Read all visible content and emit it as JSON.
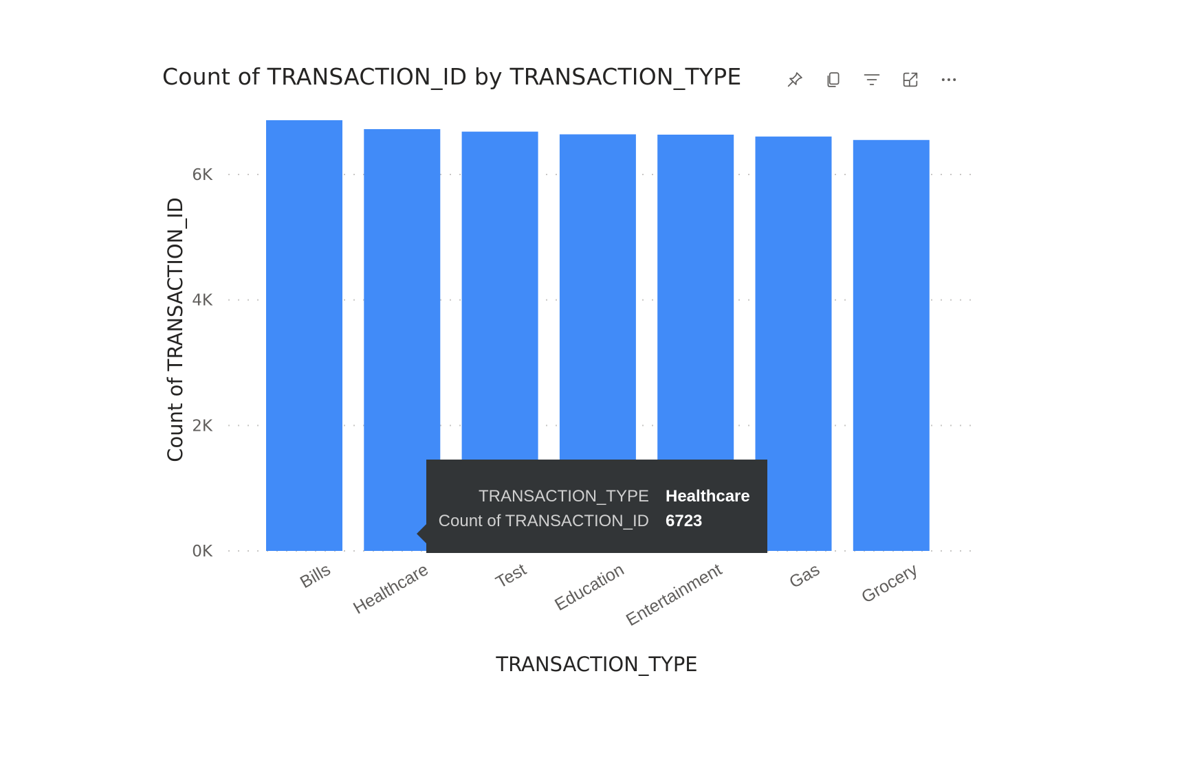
{
  "chart": {
    "title": "Count of TRANSACTION_ID by TRANSACTION_TYPE"
  },
  "header_icons": [
    "pin-icon",
    "copy-icon",
    "filter-icon",
    "focus-mode-icon",
    "more-options-icon"
  ],
  "tooltip": {
    "rows": [
      {
        "key": "TRANSACTION_TYPE",
        "value": "Healthcare"
      },
      {
        "key": "Count of TRANSACTION_ID",
        "value": "6723"
      }
    ]
  },
  "colors": {
    "bar": "#418bf8",
    "gridline": "#c8c6c4",
    "tooltip_bg": "#323537"
  },
  "chart_data": {
    "type": "bar",
    "title": "Count of TRANSACTION_ID by TRANSACTION_TYPE",
    "xlabel": "TRANSACTION_TYPE",
    "ylabel": "Count of TRANSACTION_ID",
    "categories": [
      "Bills",
      "Healthcare",
      "Test",
      "Education",
      "Entertainment",
      "Gas",
      "Grocery"
    ],
    "values": [
      6865,
      6723,
      6683,
      6640,
      6635,
      6605,
      6550
    ],
    "ylim": [
      0,
      6865
    ],
    "yticks": [
      0,
      2000,
      4000,
      6000
    ],
    "ytick_labels": [
      "0K",
      "2K",
      "4K",
      "6K"
    ],
    "grid": true,
    "legend": "none",
    "highlighted_category": "Healthcare"
  }
}
